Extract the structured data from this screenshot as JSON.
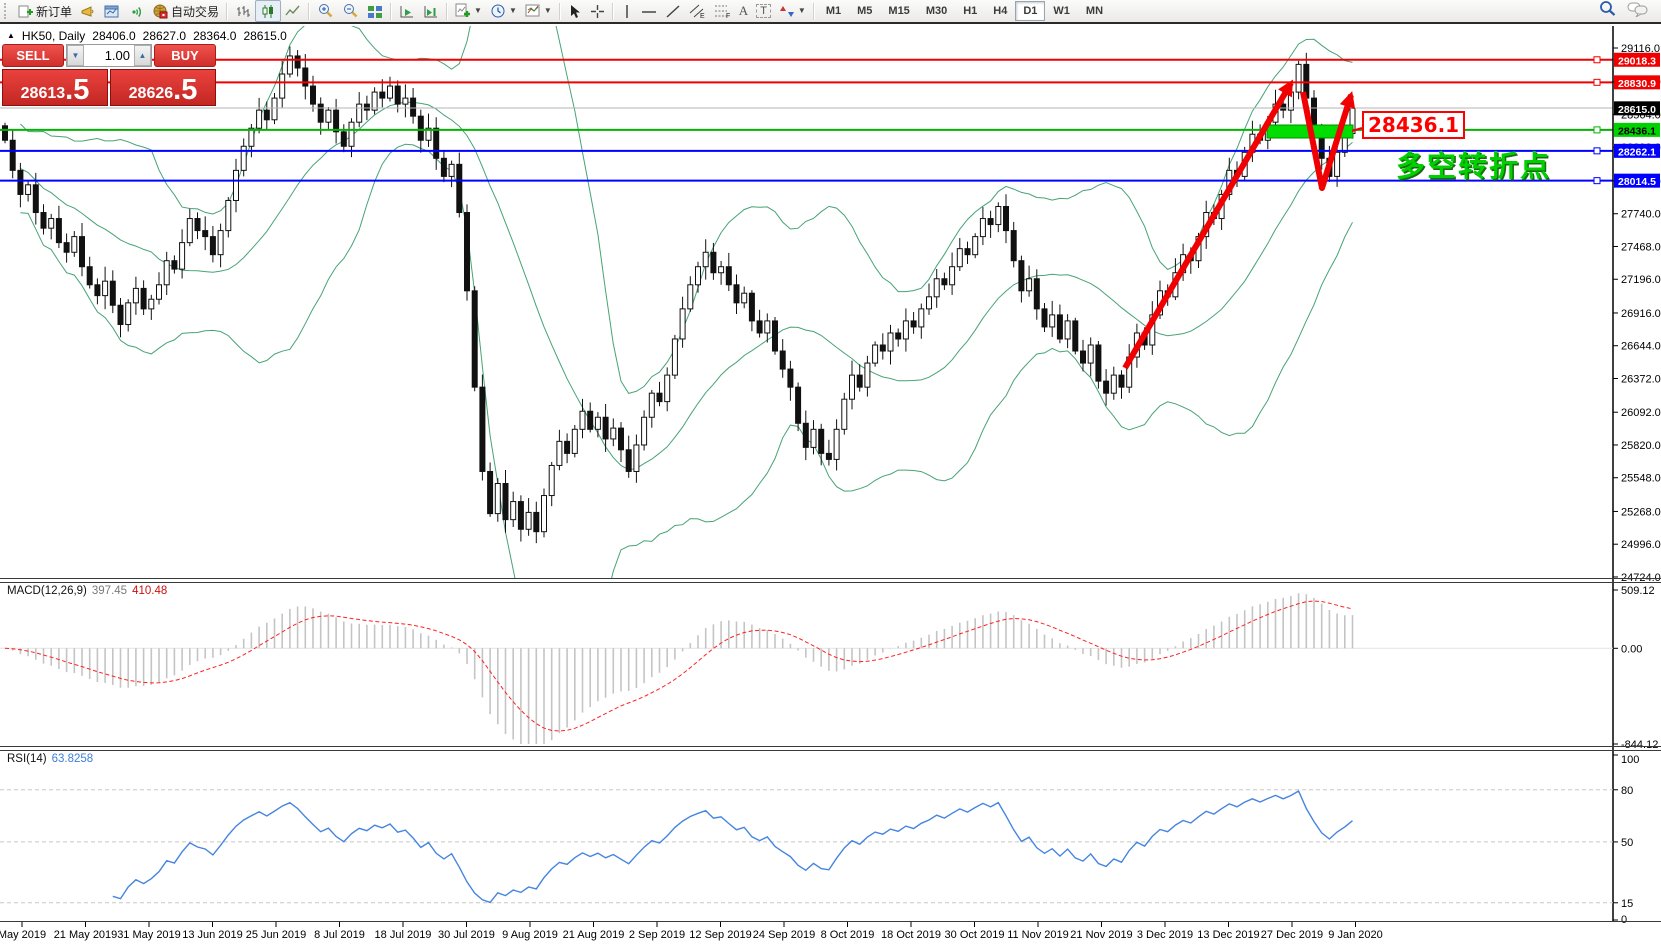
{
  "toolbar": {
    "new_order_label": "新订单",
    "autotrading_label": "自动交易",
    "timeframes": [
      "M1",
      "M5",
      "M15",
      "M30",
      "H1",
      "H4",
      "D1",
      "W1",
      "MN"
    ],
    "active_timeframe": "D1"
  },
  "chart_header": {
    "symbol": "HK50, Daily",
    "open": "28406.0",
    "high": "28627.0",
    "low": "28364.0",
    "close": "28615.0"
  },
  "one_click": {
    "sell_label": "SELL",
    "buy_label": "BUY",
    "volume": "1.00",
    "bid_main": "28613",
    "bid_big": ".5",
    "ask_main": "28626",
    "ask_big": ".5"
  },
  "colors": {
    "line_red": "#f00000",
    "line_blue": "#0000ff",
    "line_green": "#00b400",
    "tag_green": "#00d200",
    "band_green": "#339966",
    "hist_gray": "#c4c4c4",
    "signal_red": "#ff2020",
    "rsi_blue": "#4585e0",
    "current_tag": "#000000"
  },
  "chart_data": {
    "type": "candlestick+indicators",
    "symbol": "HK50",
    "period": "Daily",
    "last_candle": {
      "open": 28406.0,
      "high": 28627.0,
      "low": 28364.0,
      "close": 28615.0
    },
    "candles_close": [
      28350,
      28100,
      27900,
      27980,
      27750,
      27620,
      27700,
      27500,
      27420,
      27550,
      27300,
      27150,
      27060,
      27180,
      26980,
      26820,
      27000,
      27120,
      26950,
      27030,
      27150,
      27350,
      27280,
      27500,
      27700,
      27600,
      27550,
      27400,
      27600,
      27850,
      28100,
      28300,
      28450,
      28600,
      28520,
      28700,
      28900,
      29050,
      28950,
      28800,
      28650,
      28500,
      28600,
      28420,
      28300,
      28500,
      28650,
      28600,
      28750,
      28700,
      28800,
      28650,
      28700,
      28550,
      28350,
      28450,
      28200,
      28050,
      28150,
      27750,
      27100,
      26300,
      25600,
      25250,
      25500,
      25200,
      25350,
      25120,
      25260,
      25100,
      25400,
      25650,
      25850,
      25750,
      25950,
      26100,
      25950,
      26050,
      25870,
      25960,
      25780,
      25600,
      25820,
      26050,
      26250,
      26180,
      26400,
      26700,
      26950,
      27150,
      27300,
      27420,
      27250,
      27300,
      27150,
      27000,
      27080,
      26850,
      26750,
      26850,
      26600,
      26450,
      26300,
      26000,
      25800,
      25950,
      25750,
      25700,
      25950,
      26200,
      26400,
      26300,
      26500,
      26650,
      26600,
      26750,
      26700,
      26850,
      26800,
      26950,
      27050,
      27200,
      27150,
      27300,
      27450,
      27400,
      27550,
      27700,
      27650,
      27800,
      27600,
      27350,
      27100,
      27200,
      26950,
      26800,
      26900,
      26700,
      26850,
      26600,
      26500,
      26650,
      26350,
      26250,
      26400,
      26300,
      26550,
      26750,
      26650,
      26900,
      27100,
      27050,
      27250,
      27400,
      27350,
      27550,
      27750,
      27700,
      27900,
      28100,
      28050,
      28250,
      28400,
      28350,
      28500,
      28650,
      28600,
      28750,
      28980,
      28700,
      28450,
      28200,
      28050,
      28250,
      28406,
      28615
    ],
    "bollinger": {
      "period": 20,
      "deviation": 2
    },
    "price_axis_ticks": [
      "29116.0",
      "28836.0",
      "28564.0",
      "28292.0",
      "28012.0",
      "27740.0",
      "27468.0",
      "27196.0",
      "26916.0",
      "26644.0",
      "26372.0",
      "26092.0",
      "25820.0",
      "25548.0",
      "25268.0",
      "24996.0",
      "24724.0"
    ],
    "hlines": [
      {
        "price": 29018.3,
        "tag": "29018.3",
        "color": "#f00000",
        "tag_bg": "#f00000",
        "tag_fg": "#ffffff",
        "width": 2,
        "handle": true
      },
      {
        "price": 28830.9,
        "tag": "28830.9",
        "color": "#f00000",
        "tag_bg": "#f00000",
        "tag_fg": "#ffffff",
        "width": 2,
        "handle": true
      },
      {
        "price": 28618.0,
        "tag": "",
        "color": "#b4b4b4",
        "tag_bg": "",
        "tag_fg": "",
        "width": 1,
        "handle": false
      },
      {
        "price": 28615.0,
        "tag": "28615.0",
        "color": "",
        "tag_bg": "#000000",
        "tag_fg": "#ffffff",
        "width": 0,
        "handle": false
      },
      {
        "price": 28436.1,
        "tag": "28436.1",
        "color": "#00b400",
        "tag_bg": "#00d200",
        "tag_fg": "#000000",
        "width": 2,
        "handle": true
      },
      {
        "price": 28262.1,
        "tag": "28262.1",
        "color": "#0000ff",
        "tag_bg": "#0000ff",
        "tag_fg": "#ffffff",
        "width": 2,
        "handle": true
      },
      {
        "price": 28014.5,
        "tag": "28014.5",
        "color": "#0000ff",
        "tag_bg": "#0000ff",
        "tag_fg": "#ffffff",
        "width": 2,
        "handle": true
      }
    ],
    "macd": {
      "name": "MACD(12,26,9)",
      "value_main": "397.45",
      "value_signal": "410.48",
      "axis": [
        "509.12",
        "0.00",
        "-844.12"
      ],
      "params": [
        12,
        26,
        9
      ]
    },
    "rsi": {
      "name": "RSI(14)",
      "value": "63.8258",
      "period": 14,
      "axis": [
        "100",
        "80",
        "50",
        "15",
        "0"
      ],
      "levels": [
        80,
        50,
        15
      ]
    },
    "dates": [
      "May 2019",
      "21 May 2019",
      "31 May 2019",
      "13 Jun 2019",
      "25 Jun 2019",
      "8 Jul 2019",
      "18 Jul 2019",
      "30 Jul 2019",
      "9 Aug 2019",
      "21 Aug 2019",
      "2 Sep 2019",
      "12 Sep 2019",
      "24 Sep 2019",
      "8 Oct 2019",
      "18 Oct 2019",
      "30 Oct 2019",
      "11 Nov 2019",
      "21 Nov 2019",
      "3 Dec 2019",
      "13 Dec 2019",
      "27 Dec 2019",
      "9 Jan 2020"
    ],
    "annotations": {
      "tag_label": "28436.1",
      "cn_text": "多空转折点"
    }
  }
}
